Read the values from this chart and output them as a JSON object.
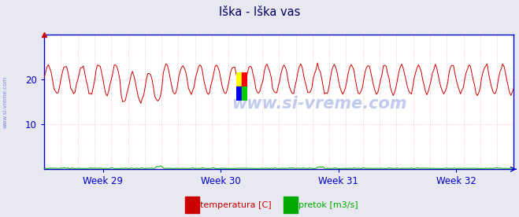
{
  "title": "Iška - Iška vas",
  "title_color": "#000066",
  "bg_color": "#e8e8f0",
  "plot_bg_color": "#ffffff",
  "grid_color": "#ffaaaa",
  "axis_color": "#0000cc",
  "ylim": [
    0,
    30
  ],
  "yticks": [
    10,
    20
  ],
  "week_labels": [
    "Week 29",
    "Week 30",
    "Week 31",
    "Week 32"
  ],
  "temp_color": "#cc0000",
  "flow_color": "#00aa00",
  "watermark_color": "#3355cc",
  "watermark_text": "www.si-vreme.com",
  "sidebar_text": "www.si-vreme.com",
  "legend_items": [
    {
      "label": "temperatura [C]",
      "color": "#cc0000"
    },
    {
      "label": "pretok [m3/s]",
      "color": "#00aa00"
    }
  ],
  "n_points": 336,
  "temp_mean": 20.0,
  "temp_amplitude": 3.2,
  "temp_period_pts": 12,
  "flow_base": 0.15,
  "logo_colors": [
    "#ffff00",
    "#ff0000",
    "#0000ee",
    "#00cc00"
  ]
}
